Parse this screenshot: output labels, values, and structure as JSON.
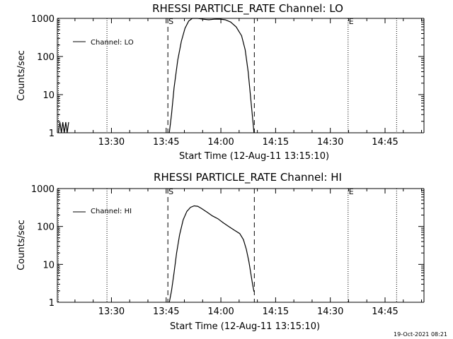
{
  "footer": {
    "timestamp": "19-Oct-2021 08:21"
  },
  "chart_data": [
    {
      "type": "line",
      "title": "RHESSI PARTICLE_RATE Channel: LO",
      "xlabel": "Start Time (12-Aug-11 13:15:10)",
      "ylabel": "Counts/sec",
      "yscale": "log",
      "ylim": [
        1,
        1000
      ],
      "xlim_minutes": [
        0,
        100.5
      ],
      "x_ticks": [
        {
          "t": 14.83,
          "label": "13:30"
        },
        {
          "t": 29.83,
          "label": "13:45"
        },
        {
          "t": 44.83,
          "label": "14:00"
        },
        {
          "t": 59.83,
          "label": "14:15"
        },
        {
          "t": 74.83,
          "label": "14:30"
        },
        {
          "t": 89.83,
          "label": "14:45"
        }
      ],
      "y_ticks": [
        {
          "v": 1,
          "label": "1"
        },
        {
          "v": 10,
          "label": "10"
        },
        {
          "v": 100,
          "label": "100"
        },
        {
          "v": 1000,
          "label": "1000"
        }
      ],
      "legend": "Channel: LO",
      "markers": [
        {
          "t": 0.3,
          "style": "dotted",
          "label": ""
        },
        {
          "t": 13.6,
          "style": "dotted",
          "label": ""
        },
        {
          "t": 30.3,
          "style": "dashed",
          "label": "S"
        },
        {
          "t": 54.0,
          "style": "dashed",
          "label": ""
        },
        {
          "t": 79.7,
          "style": "dotted",
          "label": "E"
        },
        {
          "t": 93.0,
          "style": "dotted",
          "label": ""
        }
      ],
      "series": [
        {
          "name": "Channel: LO",
          "x": [
            30.7,
            31.3,
            32.0,
            33.0,
            34.0,
            35.0,
            36.0,
            37.0,
            38.5,
            40.0,
            41.5,
            43.0,
            44.5,
            46.0,
            47.5,
            49.0,
            50.5,
            51.5,
            52.3,
            53.0,
            53.5,
            53.9
          ],
          "y": [
            1,
            3,
            15,
            80,
            250,
            550,
            850,
            1000,
            1000,
            950,
            920,
            950,
            960,
            920,
            800,
            600,
            350,
            150,
            40,
            8,
            2.5,
            1
          ]
        },
        {
          "name": "noise",
          "x": [
            0.3,
            0.7,
            1.1,
            1.5,
            1.9,
            2.3,
            2.7,
            3.1
          ],
          "y": [
            1,
            1.9,
            1,
            1.9,
            1,
            1.9,
            1,
            1.9
          ]
        }
      ]
    },
    {
      "type": "line",
      "title": "RHESSI PARTICLE_RATE Channel: HI",
      "xlabel": "Start Time (12-Aug-11 13:15:10)",
      "ylabel": "Counts/sec",
      "yscale": "log",
      "ylim": [
        1,
        1000
      ],
      "xlim_minutes": [
        0,
        100.5
      ],
      "x_ticks": [
        {
          "t": 14.83,
          "label": "13:30"
        },
        {
          "t": 29.83,
          "label": "13:45"
        },
        {
          "t": 44.83,
          "label": "14:00"
        },
        {
          "t": 59.83,
          "label": "14:15"
        },
        {
          "t": 74.83,
          "label": "14:30"
        },
        {
          "t": 89.83,
          "label": "14:45"
        }
      ],
      "y_ticks": [
        {
          "v": 1,
          "label": "1"
        },
        {
          "v": 10,
          "label": "10"
        },
        {
          "v": 100,
          "label": "100"
        },
        {
          "v": 1000,
          "label": "1000"
        }
      ],
      "legend": "Channel: HI",
      "markers": [
        {
          "t": 0.3,
          "style": "dotted",
          "label": ""
        },
        {
          "t": 13.6,
          "style": "dotted",
          "label": ""
        },
        {
          "t": 30.3,
          "style": "dashed",
          "label": "S"
        },
        {
          "t": 54.0,
          "style": "dashed",
          "label": ""
        },
        {
          "t": 79.7,
          "style": "dotted",
          "label": "E"
        },
        {
          "t": 93.0,
          "style": "dotted",
          "label": ""
        }
      ],
      "series": [
        {
          "name": "Channel: HI",
          "x": [
            30.7,
            31.3,
            32.0,
            32.7,
            33.5,
            34.5,
            35.5,
            36.5,
            37.5,
            38.5,
            39.5,
            41.0,
            42.5,
            44.0,
            45.5,
            47.0,
            48.5,
            50.0,
            51.0,
            51.8,
            52.5,
            53.0,
            53.5,
            53.9
          ],
          "y": [
            1,
            2,
            6,
            20,
            60,
            150,
            250,
            320,
            350,
            340,
            300,
            240,
            190,
            160,
            125,
            100,
            80,
            65,
            45,
            25,
            12,
            6,
            3,
            1.9
          ]
        }
      ]
    }
  ]
}
